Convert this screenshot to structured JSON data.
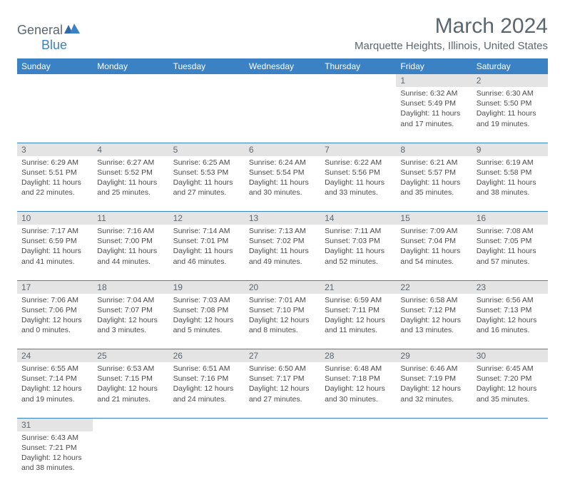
{
  "logo": {
    "general": "General",
    "blue": "Blue"
  },
  "title": {
    "month": "March 2024",
    "location": "Marquette Heights, Illinois, United States"
  },
  "colors": {
    "accent": "#3b82c4",
    "daybg": "#e4e4e4",
    "text": "#5b6770"
  },
  "dayHeaders": [
    "Sunday",
    "Monday",
    "Tuesday",
    "Wednesday",
    "Thursday",
    "Friday",
    "Saturday"
  ],
  "weeks": [
    [
      null,
      null,
      null,
      null,
      null,
      {
        "n": "1",
        "sr": "Sunrise: 6:32 AM",
        "ss": "Sunset: 5:49 PM",
        "dl": "Daylight: 11 hours and 17 minutes."
      },
      {
        "n": "2",
        "sr": "Sunrise: 6:30 AM",
        "ss": "Sunset: 5:50 PM",
        "dl": "Daylight: 11 hours and 19 minutes."
      }
    ],
    [
      {
        "n": "3",
        "sr": "Sunrise: 6:29 AM",
        "ss": "Sunset: 5:51 PM",
        "dl": "Daylight: 11 hours and 22 minutes."
      },
      {
        "n": "4",
        "sr": "Sunrise: 6:27 AM",
        "ss": "Sunset: 5:52 PM",
        "dl": "Daylight: 11 hours and 25 minutes."
      },
      {
        "n": "5",
        "sr": "Sunrise: 6:25 AM",
        "ss": "Sunset: 5:53 PM",
        "dl": "Daylight: 11 hours and 27 minutes."
      },
      {
        "n": "6",
        "sr": "Sunrise: 6:24 AM",
        "ss": "Sunset: 5:54 PM",
        "dl": "Daylight: 11 hours and 30 minutes."
      },
      {
        "n": "7",
        "sr": "Sunrise: 6:22 AM",
        "ss": "Sunset: 5:56 PM",
        "dl": "Daylight: 11 hours and 33 minutes."
      },
      {
        "n": "8",
        "sr": "Sunrise: 6:21 AM",
        "ss": "Sunset: 5:57 PM",
        "dl": "Daylight: 11 hours and 35 minutes."
      },
      {
        "n": "9",
        "sr": "Sunrise: 6:19 AM",
        "ss": "Sunset: 5:58 PM",
        "dl": "Daylight: 11 hours and 38 minutes."
      }
    ],
    [
      {
        "n": "10",
        "sr": "Sunrise: 7:17 AM",
        "ss": "Sunset: 6:59 PM",
        "dl": "Daylight: 11 hours and 41 minutes."
      },
      {
        "n": "11",
        "sr": "Sunrise: 7:16 AM",
        "ss": "Sunset: 7:00 PM",
        "dl": "Daylight: 11 hours and 44 minutes."
      },
      {
        "n": "12",
        "sr": "Sunrise: 7:14 AM",
        "ss": "Sunset: 7:01 PM",
        "dl": "Daylight: 11 hours and 46 minutes."
      },
      {
        "n": "13",
        "sr": "Sunrise: 7:13 AM",
        "ss": "Sunset: 7:02 PM",
        "dl": "Daylight: 11 hours and 49 minutes."
      },
      {
        "n": "14",
        "sr": "Sunrise: 7:11 AM",
        "ss": "Sunset: 7:03 PM",
        "dl": "Daylight: 11 hours and 52 minutes."
      },
      {
        "n": "15",
        "sr": "Sunrise: 7:09 AM",
        "ss": "Sunset: 7:04 PM",
        "dl": "Daylight: 11 hours and 54 minutes."
      },
      {
        "n": "16",
        "sr": "Sunrise: 7:08 AM",
        "ss": "Sunset: 7:05 PM",
        "dl": "Daylight: 11 hours and 57 minutes."
      }
    ],
    [
      {
        "n": "17",
        "sr": "Sunrise: 7:06 AM",
        "ss": "Sunset: 7:06 PM",
        "dl": "Daylight: 12 hours and 0 minutes."
      },
      {
        "n": "18",
        "sr": "Sunrise: 7:04 AM",
        "ss": "Sunset: 7:07 PM",
        "dl": "Daylight: 12 hours and 3 minutes."
      },
      {
        "n": "19",
        "sr": "Sunrise: 7:03 AM",
        "ss": "Sunset: 7:08 PM",
        "dl": "Daylight: 12 hours and 5 minutes."
      },
      {
        "n": "20",
        "sr": "Sunrise: 7:01 AM",
        "ss": "Sunset: 7:10 PM",
        "dl": "Daylight: 12 hours and 8 minutes."
      },
      {
        "n": "21",
        "sr": "Sunrise: 6:59 AM",
        "ss": "Sunset: 7:11 PM",
        "dl": "Daylight: 12 hours and 11 minutes."
      },
      {
        "n": "22",
        "sr": "Sunrise: 6:58 AM",
        "ss": "Sunset: 7:12 PM",
        "dl": "Daylight: 12 hours and 13 minutes."
      },
      {
        "n": "23",
        "sr": "Sunrise: 6:56 AM",
        "ss": "Sunset: 7:13 PM",
        "dl": "Daylight: 12 hours and 16 minutes."
      }
    ],
    [
      {
        "n": "24",
        "sr": "Sunrise: 6:55 AM",
        "ss": "Sunset: 7:14 PM",
        "dl": "Daylight: 12 hours and 19 minutes."
      },
      {
        "n": "25",
        "sr": "Sunrise: 6:53 AM",
        "ss": "Sunset: 7:15 PM",
        "dl": "Daylight: 12 hours and 21 minutes."
      },
      {
        "n": "26",
        "sr": "Sunrise: 6:51 AM",
        "ss": "Sunset: 7:16 PM",
        "dl": "Daylight: 12 hours and 24 minutes."
      },
      {
        "n": "27",
        "sr": "Sunrise: 6:50 AM",
        "ss": "Sunset: 7:17 PM",
        "dl": "Daylight: 12 hours and 27 minutes."
      },
      {
        "n": "28",
        "sr": "Sunrise: 6:48 AM",
        "ss": "Sunset: 7:18 PM",
        "dl": "Daylight: 12 hours and 30 minutes."
      },
      {
        "n": "29",
        "sr": "Sunrise: 6:46 AM",
        "ss": "Sunset: 7:19 PM",
        "dl": "Daylight: 12 hours and 32 minutes."
      },
      {
        "n": "30",
        "sr": "Sunrise: 6:45 AM",
        "ss": "Sunset: 7:20 PM",
        "dl": "Daylight: 12 hours and 35 minutes."
      }
    ],
    [
      {
        "n": "31",
        "sr": "Sunrise: 6:43 AM",
        "ss": "Sunset: 7:21 PM",
        "dl": "Daylight: 12 hours and 38 minutes."
      },
      null,
      null,
      null,
      null,
      null,
      null
    ]
  ]
}
